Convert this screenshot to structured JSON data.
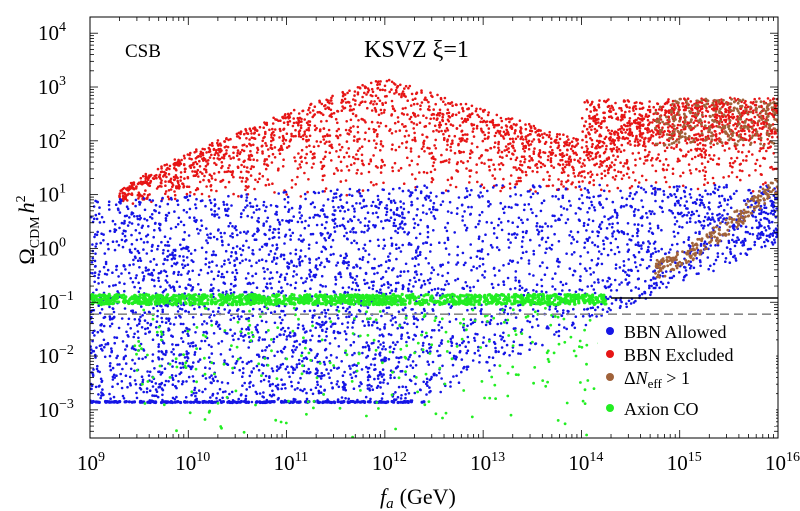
{
  "chart_data": {
    "type": "scatter",
    "title": "KSVZ ξ=1",
    "corner_label": "CSB",
    "xlabel_main": "f",
    "xlabel_sub": "a",
    "xlabel_unit": "(GeV)",
    "ylabel_main": "Ω",
    "ylabel_sub": "CDM",
    "ylabel_h": "h",
    "ylabel_sup": "2",
    "x_scale": "log",
    "y_scale": "log",
    "xlim": [
      1000000000.0,
      1e+16
    ],
    "ylim": [
      0.0003,
      20000
    ],
    "x_ticks": [
      {
        "value": 1000000000.0,
        "base": "10",
        "exp": "9"
      },
      {
        "value": 10000000000.0,
        "base": "10",
        "exp": "10"
      },
      {
        "value": 100000000000.0,
        "base": "10",
        "exp": "11"
      },
      {
        "value": 1000000000000.0,
        "base": "10",
        "exp": "12"
      },
      {
        "value": 10000000000000.0,
        "base": "10",
        "exp": "13"
      },
      {
        "value": 100000000000000.0,
        "base": "10",
        "exp": "14"
      },
      {
        "value": 1000000000000000.0,
        "base": "10",
        "exp": "15"
      },
      {
        "value": 1e+16,
        "base": "10",
        "exp": "16"
      }
    ],
    "y_ticks": [
      {
        "value": 0.001,
        "base": "10",
        "exp": "−3"
      },
      {
        "value": 0.01,
        "base": "10",
        "exp": "−2"
      },
      {
        "value": 0.1,
        "base": "10",
        "exp": "−1"
      },
      {
        "value": 1,
        "base": "10",
        "exp": "0"
      },
      {
        "value": 10,
        "base": "10",
        "exp": "1"
      },
      {
        "value": 100,
        "base": "10",
        "exp": "2"
      },
      {
        "value": 1000,
        "base": "10",
        "exp": "3"
      },
      {
        "value": 10000,
        "base": "10",
        "exp": "4"
      }
    ],
    "reference_lines": [
      {
        "y": 0.12,
        "style": "solid",
        "color": "#000000",
        "x_from": 200000000000000.0
      },
      {
        "y": 0.06,
        "style": "dashed",
        "color": "#888888"
      }
    ],
    "legend_position": "bottom-right",
    "series": [
      {
        "name": "BBN Allowed",
        "color": "#1515e6",
        "regions": [
          {
            "x": [
              1000000000.0,
              3000000000000.0
            ],
            "y_low": 0.0014,
            "y_high_start": 8,
            "y_high_end": 15,
            "count": 2400
          },
          {
            "x": [
              3000000000000.0,
              250000000000000.0
            ],
            "y_low_start": 0.0014,
            "y_low_end": 0.06,
            "y_high": 15,
            "count": 900
          },
          {
            "x": [
              200000000000000.0,
              1e+16
            ],
            "y_low_start": 0.06,
            "y_low_end": 1.2,
            "y_high": 15,
            "count": 380
          }
        ],
        "floor": {
          "y": 0.0014,
          "x": [
            1000000000.0,
            2500000000000.0
          ]
        }
      },
      {
        "name": "BBN Excluded",
        "color": "#e61515",
        "regions": [
          {
            "x": [
              1000000000.0,
              1e+16
            ],
            "band": "between blue top and bubble envelope peaking ~1500 at 1e12",
            "count": 2300
          },
          {
            "x": [
              100000000000000.0,
              1e+16
            ],
            "band": "100 to 600",
            "count": 500
          }
        ]
      },
      {
        "name": "ΔN_eff > 1",
        "label_main": "Δ",
        "label_italic": "N",
        "label_sub": "eff",
        "label_rest": " > 1",
        "color": "#a0623a",
        "regions": [
          {
            "x": [
              500000000000000.0,
              1e+16
            ],
            "y": [
              0.5,
              600
            ],
            "count": 500
          }
        ]
      },
      {
        "name": "Axion CO",
        "color": "#22ee22",
        "regions": [
          {
            "x": [
              1000000000.0,
              200000000000000.0
            ],
            "band": "0.09 to 0.14",
            "count": 1300
          },
          {
            "x": [
              1000000000.0,
              200000000000000.0
            ],
            "y": [
              0.0001,
              0.1
            ],
            "count": 260
          }
        ]
      }
    ]
  }
}
